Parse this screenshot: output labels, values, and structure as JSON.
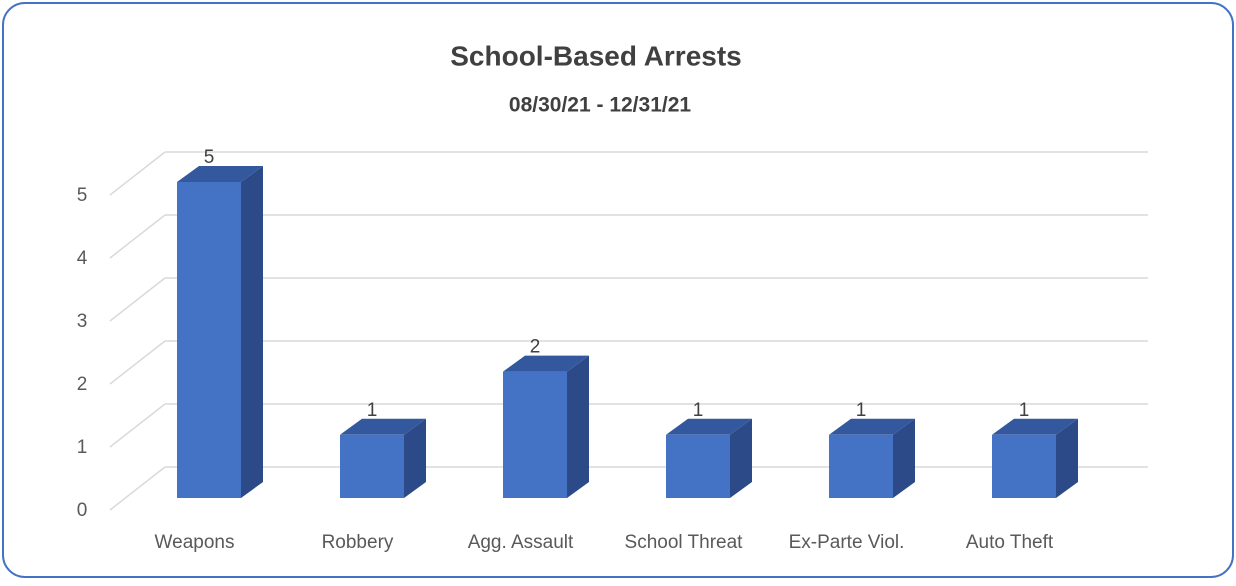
{
  "chart_data": {
    "type": "bar3d",
    "title": "School-Based Arrests",
    "subtitle": "08/30/21 - 12/31/21",
    "categories": [
      "Weapons",
      "Robbery",
      "Agg. Assault",
      "School Threat",
      "Ex-Parte Viol.",
      "Auto Theft"
    ],
    "values": [
      5,
      1,
      2,
      1,
      1,
      1
    ],
    "color": "#4472c4",
    "ylim": [
      0,
      5
    ],
    "yticks": [
      0,
      1,
      2,
      3,
      4,
      5
    ],
    "grid": true
  }
}
